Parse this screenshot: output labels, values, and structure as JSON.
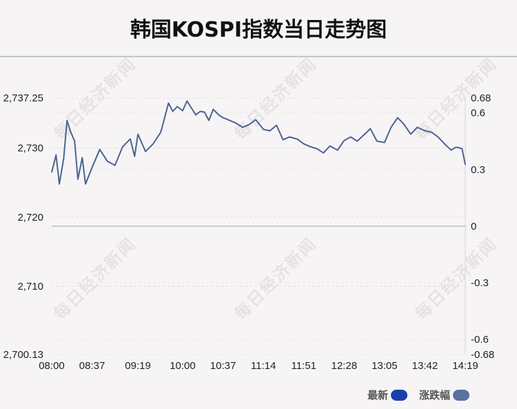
{
  "title": "韩国KOSPI指数当日走势图",
  "legend": {
    "latest": {
      "label": "最新",
      "color": "#1a3faa"
    },
    "change": {
      "label": "涨跌幅",
      "color": "#5a72a0"
    }
  },
  "watermark_text": "每日经济新闻",
  "chart_data": {
    "type": "line",
    "series": [
      {
        "color": "#4a6392"
      }
    ],
    "x_ticks": [
      "08:00",
      "08:37",
      "09:19",
      "10:00",
      "10:37",
      "11:14",
      "11:51",
      "12:28",
      "13:05",
      "13:42",
      "14:19"
    ],
    "y_left_ticks": [
      {
        "v": 2737.25,
        "label": "2,737.25"
      },
      {
        "v": 2730,
        "label": "2,730"
      },
      {
        "v": 2720,
        "label": "2,720"
      },
      {
        "v": 2710,
        "label": "2,710"
      },
      {
        "v": 2700.13,
        "label": "2,700.13"
      }
    ],
    "y_right_ticks": [
      {
        "v": 0.68,
        "label": "0.68"
      },
      {
        "v": 0.6,
        "label": "0.6"
      },
      {
        "v": 0.3,
        "label": "0.3"
      },
      {
        "v": 0,
        "label": "0"
      },
      {
        "v": -0.3,
        "label": "-0.3"
      },
      {
        "v": -0.6,
        "label": "-0.6"
      },
      {
        "v": -0.68,
        "label": "-0.68"
      }
    ],
    "ylim": [
      2700.13,
      2737.25
    ],
    "baseline": 2718.7,
    "grid": true,
    "points": [
      [
        "08:00",
        2726.5
      ],
      [
        "08:04",
        2729.0
      ],
      [
        "08:07",
        2724.8
      ],
      [
        "08:11",
        2728.5
      ],
      [
        "08:14",
        2734.0
      ],
      [
        "08:17",
        2732.5
      ],
      [
        "08:21",
        2731.0
      ],
      [
        "08:24",
        2725.5
      ],
      [
        "08:28",
        2728.6
      ],
      [
        "08:31",
        2724.8
      ],
      [
        "08:37",
        2727.2
      ],
      [
        "08:44",
        2729.8
      ],
      [
        "08:51",
        2728.1
      ],
      [
        "08:58",
        2727.5
      ],
      [
        "09:05",
        2730.2
      ],
      [
        "09:12",
        2731.3
      ],
      [
        "09:16",
        2728.8
      ],
      [
        "09:19",
        2732.0
      ],
      [
        "09:26",
        2729.5
      ],
      [
        "09:33",
        2730.6
      ],
      [
        "09:40",
        2732.3
      ],
      [
        "09:47",
        2736.5
      ],
      [
        "09:51",
        2735.3
      ],
      [
        "09:55",
        2736.0
      ],
      [
        "10:00",
        2735.4
      ],
      [
        "10:04",
        2736.8
      ],
      [
        "10:08",
        2735.8
      ],
      [
        "10:12",
        2734.8
      ],
      [
        "10:16",
        2735.3
      ],
      [
        "10:20",
        2735.2
      ],
      [
        "10:24",
        2734.0
      ],
      [
        "10:28",
        2735.6
      ],
      [
        "10:33",
        2734.8
      ],
      [
        "10:37",
        2734.4
      ],
      [
        "10:43",
        2734.0
      ],
      [
        "10:49",
        2733.6
      ],
      [
        "10:55",
        2733.0
      ],
      [
        "11:01",
        2733.4
      ],
      [
        "11:07",
        2734.1
      ],
      [
        "11:14",
        2732.7
      ],
      [
        "11:20",
        2732.5
      ],
      [
        "11:26",
        2733.3
      ],
      [
        "11:32",
        2731.2
      ],
      [
        "11:38",
        2731.6
      ],
      [
        "11:45",
        2731.3
      ],
      [
        "11:51",
        2730.6
      ],
      [
        "11:57",
        2730.2
      ],
      [
        "12:03",
        2729.9
      ],
      [
        "12:09",
        2729.3
      ],
      [
        "12:15",
        2730.3
      ],
      [
        "12:22",
        2729.7
      ],
      [
        "12:28",
        2731.1
      ],
      [
        "12:34",
        2731.6
      ],
      [
        "12:40",
        2731.0
      ],
      [
        "12:46",
        2731.9
      ],
      [
        "12:52",
        2732.8
      ],
      [
        "12:58",
        2731.0
      ],
      [
        "13:05",
        2730.8
      ],
      [
        "13:11",
        2733.0
      ],
      [
        "13:17",
        2734.4
      ],
      [
        "13:23",
        2733.4
      ],
      [
        "13:29",
        2732.0
      ],
      [
        "13:35",
        2733.0
      ],
      [
        "13:42",
        2732.5
      ],
      [
        "13:48",
        2732.3
      ],
      [
        "13:54",
        2731.6
      ],
      [
        "14:00",
        2730.6
      ],
      [
        "14:06",
        2729.7
      ],
      [
        "14:10",
        2730.1
      ],
      [
        "14:12",
        2730.1
      ],
      [
        "14:16",
        2729.9
      ],
      [
        "14:19",
        2727.6
      ]
    ]
  }
}
